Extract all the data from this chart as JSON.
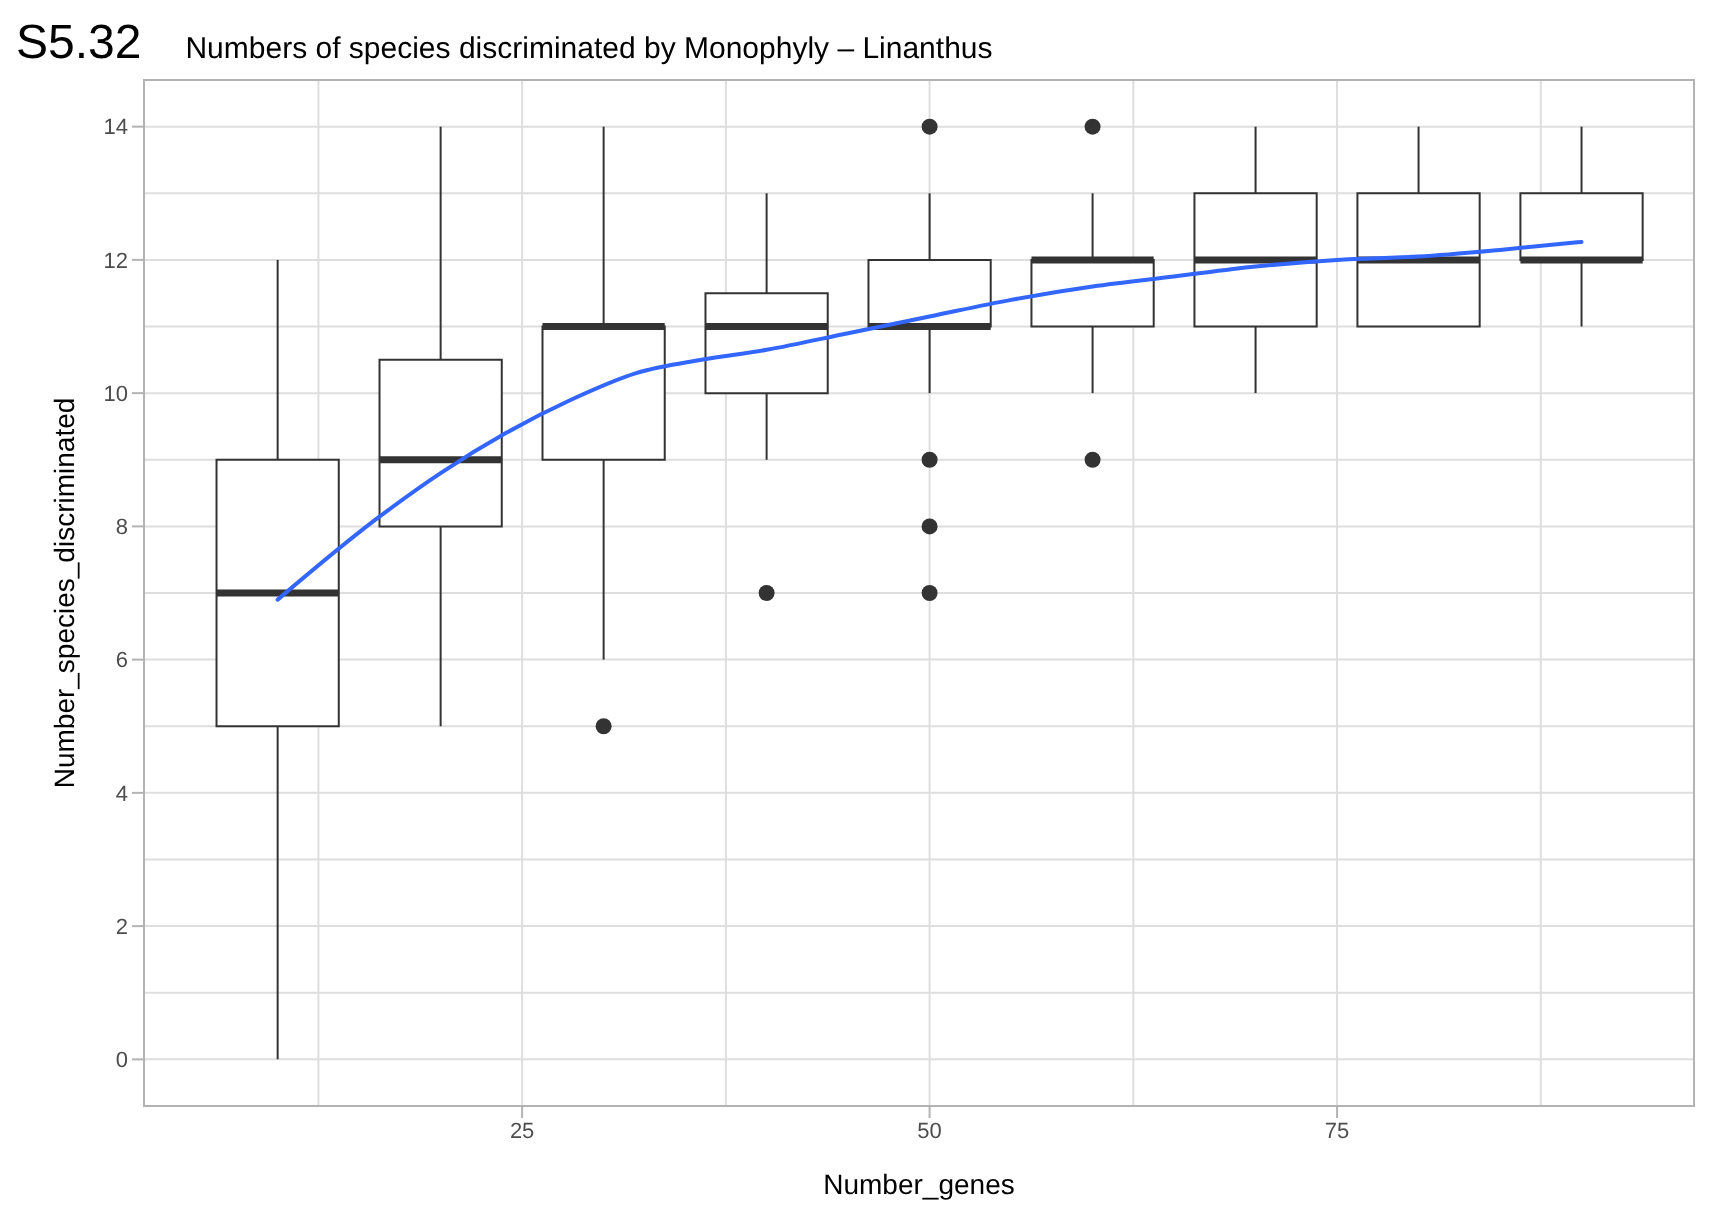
{
  "chart_data": {
    "type": "box",
    "title": "Numbers of species discriminated by Monophyly – Linanthus",
    "xlabel": "Number_genes",
    "ylabel": "Number_species_discriminated",
    "annotations": [
      "S5.32"
    ],
    "x": [
      10,
      20,
      30,
      40,
      50,
      60,
      70,
      80,
      90
    ],
    "xlim": [
      1.8,
      96.9
    ],
    "xticks": [
      25,
      50,
      75
    ],
    "ylim": [
      -0.7,
      14.7
    ],
    "yticks": [
      0,
      2,
      4,
      6,
      8,
      10,
      12,
      14
    ],
    "grid": true,
    "boxes": [
      {
        "low": 0,
        "q1": 5,
        "median": 7,
        "q3": 9,
        "high": 12
      },
      {
        "low": 5,
        "q1": 8,
        "median": 9,
        "q3": 10.5,
        "high": 14
      },
      {
        "low": 6,
        "q1": 9,
        "median": 11,
        "q3": 11,
        "high": 14,
        "outliers": [
          5
        ]
      },
      {
        "low": 9,
        "q1": 10,
        "median": 11,
        "q3": 11.5,
        "high": 13,
        "outliers": [
          7
        ]
      },
      {
        "low": 10,
        "q1": 11,
        "median": 11,
        "q3": 12,
        "high": 13,
        "outliers": [
          14,
          9,
          8,
          7
        ]
      },
      {
        "low": 10,
        "q1": 11,
        "median": 12,
        "q3": 12,
        "high": 13,
        "outliers": [
          14,
          9
        ]
      },
      {
        "low": 10,
        "q1": 11,
        "median": 12,
        "q3": 13,
        "high": 14
      },
      {
        "low": 11,
        "q1": 11,
        "median": 12,
        "q3": 13,
        "high": 14
      },
      {
        "low": 11,
        "q1": 12,
        "median": 12,
        "q3": 13,
        "high": 14
      }
    ],
    "series": [
      {
        "type": "line",
        "color": "#3366ff",
        "x": [
          10,
          16,
          20,
          24,
          28,
          32,
          36,
          40,
          45,
          50,
          55,
          60,
          65,
          70,
          75,
          80,
          85,
          90
        ],
        "values": [
          6.9,
          8.1,
          8.8,
          9.4,
          9.9,
          10.3,
          10.5,
          10.65,
          10.9,
          11.15,
          11.4,
          11.6,
          11.75,
          11.9,
          12.0,
          12.05,
          12.15,
          12.27
        ]
      }
    ]
  }
}
